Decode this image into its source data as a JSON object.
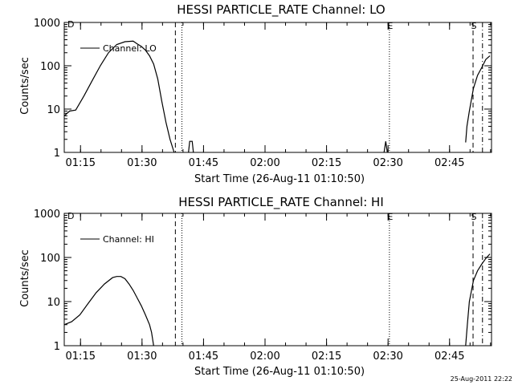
{
  "footer_timestamp": "25-Aug-2011 22:22",
  "chart_data": [
    {
      "type": "line",
      "title": "HESSI PARTICLE_RATE Channel: LO",
      "xlabel": "Start Time (26-Aug-11 01:10:50)",
      "ylabel": "Counts/sec",
      "yscale": "log",
      "ylim": [
        1,
        1000
      ],
      "xlim_minutes": [
        0.2,
        104.4
      ],
      "x_tick_labels": [
        "01:15",
        "01:30",
        "01:45",
        "02:00",
        "02:15",
        "02:30",
        "02:45"
      ],
      "y_tick_labels": [
        "1",
        "10",
        "100",
        "1000"
      ],
      "legend": {
        "label": "Channel: LO",
        "position": "top-left"
      },
      "vlines": [
        {
          "x": 27.3,
          "style": "dashed",
          "label": ""
        },
        {
          "x": 28.9,
          "style": "dotted",
          "label": ""
        },
        {
          "x": 99.9,
          "style": "dashed",
          "label": "S"
        },
        {
          "x": 102.2,
          "style": "dashdot",
          "label": ""
        },
        {
          "x": 79.5,
          "style": "dotted",
          "label": "E"
        }
      ],
      "corner_label": "D",
      "series": [
        {
          "name": "Channel: LO",
          "segments": [
            [
              [
                0.2,
                7
              ],
              [
                1.5,
                9
              ],
              [
                3.0,
                9.5
              ],
              [
                5.0,
                20
              ],
              [
                7.0,
                45
              ],
              [
                9.0,
                100
              ],
              [
                11.0,
                200
              ],
              [
                13.0,
                310
              ],
              [
                15.0,
                360
              ],
              [
                17.0,
                370
              ],
              [
                18.0,
                320
              ],
              [
                19.0,
                280
              ],
              [
                20.0,
                230
              ],
              [
                21.0,
                170
              ],
              [
                22.0,
                110
              ],
              [
                23.0,
                50
              ],
              [
                24.0,
                15
              ],
              [
                25.0,
                5
              ],
              [
                26.0,
                2
              ],
              [
                27.0,
                1
              ]
            ],
            [
              [
                30.5,
                1
              ],
              [
                30.8,
                1.8
              ],
              [
                31.4,
                1.8
              ],
              [
                31.7,
                1
              ]
            ],
            [
              [
                78.2,
                1
              ],
              [
                78.6,
                1.8
              ],
              [
                79.0,
                1
              ]
            ],
            [
              [
                98.1,
                1.7
              ],
              [
                98.4,
                4
              ],
              [
                99.0,
                9
              ],
              [
                100.0,
                30
              ],
              [
                101.0,
                60
              ],
              [
                102.0,
                90
              ],
              [
                103.0,
                140
              ],
              [
                104.0,
                170
              ]
            ]
          ]
        }
      ]
    },
    {
      "type": "line",
      "title": "HESSI PARTICLE_RATE Channel: HI",
      "xlabel": "Start Time (26-Aug-11 01:10:50)",
      "ylabel": "Counts/sec",
      "yscale": "log",
      "ylim": [
        1,
        1000
      ],
      "xlim_minutes": [
        0.2,
        104.4
      ],
      "x_tick_labels": [
        "01:15",
        "01:30",
        "01:45",
        "02:00",
        "02:15",
        "02:30",
        "02:45"
      ],
      "y_tick_labels": [
        "1",
        "10",
        "100",
        "1000"
      ],
      "legend": {
        "label": "Channel: HI",
        "position": "top-left"
      },
      "vlines": [
        {
          "x": 27.3,
          "style": "dashed",
          "label": ""
        },
        {
          "x": 28.9,
          "style": "dotted",
          "label": ""
        },
        {
          "x": 99.9,
          "style": "dashed",
          "label": "S"
        },
        {
          "x": 102.2,
          "style": "dashdot",
          "label": ""
        },
        {
          "x": 79.5,
          "style": "dotted",
          "label": "E"
        }
      ],
      "corner_label": "D",
      "series": [
        {
          "name": "Channel: HI",
          "segments": [
            [
              [
                0.2,
                3
              ],
              [
                2.0,
                3.5
              ],
              [
                4.0,
                5
              ],
              [
                6.0,
                9
              ],
              [
                8.0,
                16
              ],
              [
                10.0,
                25
              ],
              [
                12.0,
                35
              ],
              [
                13.0,
                37
              ],
              [
                14.0,
                37
              ],
              [
                15.0,
                33
              ],
              [
                16.0,
                25
              ],
              [
                17.0,
                18
              ],
              [
                18.0,
                12
              ],
              [
                19.0,
                8
              ],
              [
                20.0,
                5
              ],
              [
                21.0,
                3
              ],
              [
                21.5,
                2
              ],
              [
                22.0,
                1
              ]
            ],
            [
              [
                98.1,
                1
              ],
              [
                98.5,
                3
              ],
              [
                99.0,
                10
              ],
              [
                100.0,
                30
              ],
              [
                101.0,
                50
              ],
              [
                102.0,
                70
              ],
              [
                103.0,
                95
              ],
              [
                104.0,
                120
              ]
            ]
          ]
        }
      ]
    }
  ]
}
